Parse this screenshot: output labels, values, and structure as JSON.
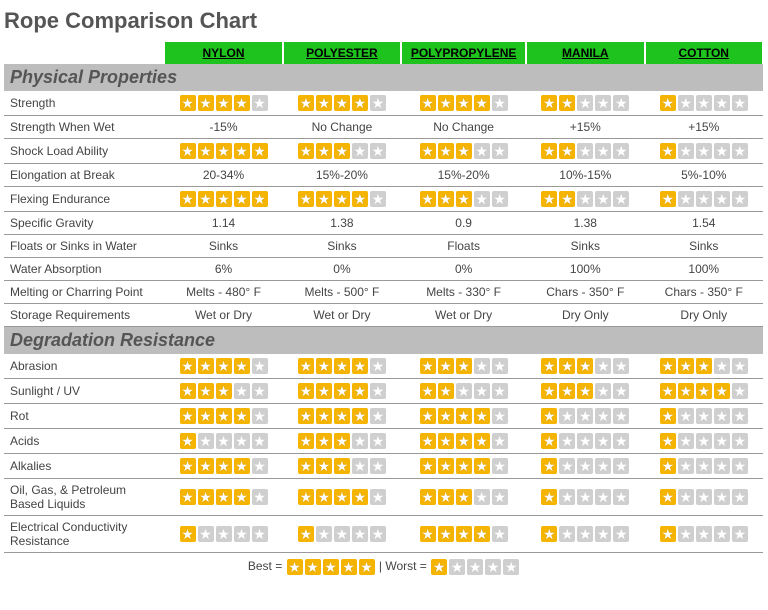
{
  "title": "Rope Comparison Chart",
  "columns": [
    "NYLON",
    "POLYESTER",
    "POLYPROPYLENE",
    "MANILA",
    "COTTON"
  ],
  "colors": {
    "header_bg": "#1ec31e",
    "section_bg": "#bdbdbd",
    "star_on": "#f4b400",
    "star_off": "#cfcfcf",
    "row_border": "#999999",
    "title_color": "#555555"
  },
  "star_max": 5,
  "sections": [
    {
      "title": "Physical Properties",
      "rows": [
        {
          "label": "Strength",
          "type": "stars",
          "values": [
            4,
            4,
            4,
            2,
            1
          ]
        },
        {
          "label": "Strength When Wet",
          "type": "text",
          "values": [
            "-15%",
            "No Change",
            "No Change",
            "+15%",
            "+15%"
          ]
        },
        {
          "label": "Shock Load Ability",
          "type": "stars",
          "values": [
            5,
            3,
            3,
            2,
            1
          ]
        },
        {
          "label": "Elongation at Break",
          "type": "text",
          "values": [
            "20-34%",
            "15%-20%",
            "15%-20%",
            "10%-15%",
            "5%-10%"
          ]
        },
        {
          "label": "Flexing Endurance",
          "type": "stars",
          "values": [
            5,
            4,
            3,
            2,
            1
          ]
        },
        {
          "label": "Specific Gravity",
          "type": "text",
          "values": [
            "1.14",
            "1.38",
            "0.9",
            "1.38",
            "1.54"
          ]
        },
        {
          "label": "Floats or Sinks in Water",
          "type": "text",
          "values": [
            "Sinks",
            "Sinks",
            "Floats",
            "Sinks",
            "Sinks"
          ]
        },
        {
          "label": "Water Absorption",
          "type": "text",
          "values": [
            "6%",
            "0%",
            "0%",
            "100%",
            "100%"
          ]
        },
        {
          "label": "Melting or Charring Point",
          "type": "text",
          "values": [
            "Melts - 480° F",
            "Melts - 500° F",
            "Melts - 330° F",
            "Chars - 350° F",
            "Chars - 350° F"
          ]
        },
        {
          "label": "Storage Requirements",
          "type": "text",
          "values": [
            "Wet or Dry",
            "Wet or Dry",
            "Wet or Dry",
            "Dry Only",
            "Dry Only"
          ]
        }
      ]
    },
    {
      "title": "Degradation Resistance",
      "rows": [
        {
          "label": "Abrasion",
          "type": "stars",
          "values": [
            4,
            4,
            3,
            3,
            3
          ]
        },
        {
          "label": "Sunlight / UV",
          "type": "stars",
          "values": [
            3,
            4,
            2,
            3,
            4
          ]
        },
        {
          "label": "Rot",
          "type": "stars",
          "values": [
            4,
            4,
            4,
            1,
            1
          ]
        },
        {
          "label": "Acids",
          "type": "stars",
          "values": [
            1,
            3,
            4,
            1,
            1
          ]
        },
        {
          "label": "Alkalies",
          "type": "stars",
          "values": [
            4,
            3,
            4,
            1,
            1
          ]
        },
        {
          "label": "Oil, Gas, & Petroleum Based Liquids",
          "type": "stars",
          "values": [
            4,
            4,
            3,
            1,
            1
          ]
        },
        {
          "label": "Electrical Conductivity Resistance",
          "type": "stars",
          "values": [
            1,
            1,
            4,
            1,
            1
          ]
        }
      ]
    }
  ],
  "legend": {
    "best": "Best =",
    "worst": "| Worst ="
  }
}
